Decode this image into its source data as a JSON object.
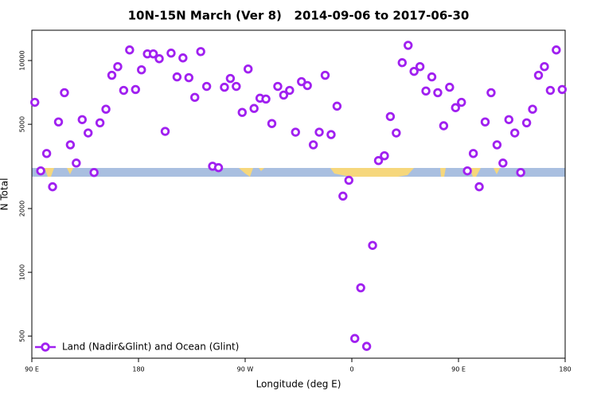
{
  "chart_data": {
    "type": "scatter",
    "title": "10N-15N March (Ver 8)   2014-09-06 to 2017-06-30",
    "x_label": "Longitude (deg E)",
    "y_label": "N Total",
    "x": [
      92.5,
      97.5,
      102.5,
      107.5,
      112.5,
      117.5,
      122.5,
      127.5,
      132.5,
      137.5,
      142.5,
      147.5,
      152.5,
      157.5,
      162.5,
      167.5,
      172.5,
      177.5,
      182.5,
      187.5,
      192.5,
      197.5,
      202.5,
      207.5,
      212.5,
      217.5,
      222.5,
      227.5,
      232.5,
      237.5,
      242.5,
      247.5,
      252.5,
      257.5,
      262.5,
      267.5,
      272.5,
      277.5,
      282.5,
      287.5,
      292.5,
      297.5,
      302.5,
      307.5,
      312.5,
      317.5,
      322.5,
      327.5,
      332.5,
      337.5,
      342.5,
      347.5,
      352.5,
      357.5,
      362.5,
      367.5,
      372.5,
      377.5,
      382.5,
      387.5,
      392.5,
      397.5,
      402.5,
      407.5,
      412.5,
      417.5,
      422.5,
      427.5,
      432.5,
      437.5,
      442.5,
      447.5,
      452.5,
      457.5,
      462.5,
      467.5,
      472.5,
      477.5,
      482.5,
      487.5,
      492.5,
      497.5,
      502.5,
      507.5,
      512.5,
      517.5,
      522.5,
      527.5,
      532.5,
      537.5
    ],
    "series": [
      {
        "name": "Land (Nadir&Glint) and Ocean (Glint)",
        "color": "#a020f0",
        "values": [
          6350,
          3013,
          3640,
          2535,
          5130,
          7050,
          4000,
          3280,
          5260,
          4550,
          2960,
          5080,
          5890,
          8520,
          9360,
          7230,
          11220,
          7300,
          9040,
          10750,
          10750,
          10200,
          4630,
          10840,
          8370,
          10290,
          8300,
          6700,
          11020,
          7550,
          3170,
          3120,
          7480,
          8230,
          7550,
          5690,
          9120,
          5940,
          6640,
          6580,
          5040,
          7550,
          6870,
          7230,
          4590,
          7950,
          7620,
          4000,
          4590,
          8520,
          4470,
          6090,
          2290,
          2720,
          487,
          845,
          447,
          1340,
          3370,
          3550,
          5440,
          4550,
          9770,
          11800,
          8890,
          9360,
          7180,
          8370,
          7050,
          4920,
          7480,
          5990,
          6350,
          3013,
          3640,
          2535,
          5130,
          7050,
          4000,
          3280,
          5260,
          4550,
          2960,
          5080,
          5890,
          8520,
          9360,
          7230,
          11220,
          7300
        ]
      }
    ],
    "xlim": [
      90,
      540
    ],
    "ylim": [
      393,
      13900
    ],
    "xticks": [
      {
        "value": 90,
        "label": "90 E"
      },
      180,
      {
        "value": 270,
        "label": "90 W"
      },
      {
        "value": 360,
        "label": "0"
      },
      {
        "value": 450,
        "label": "90 E"
      },
      {
        "value": 540,
        "label": "180"
      }
    ],
    "yticks": [
      500,
      1000,
      2000,
      5000,
      10000
    ],
    "log_y": true,
    "legend": "bottom-left"
  }
}
